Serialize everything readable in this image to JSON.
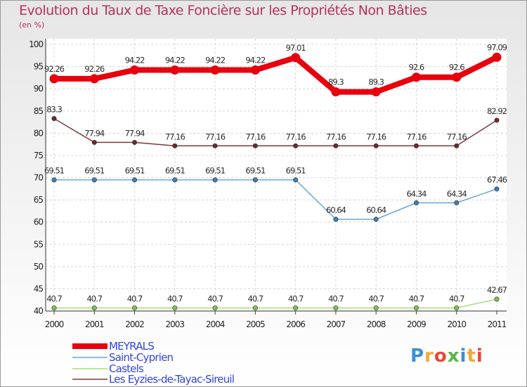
{
  "title": "Evolution du Taux de Taxe Foncière sur les Propriétés Non Bâties",
  "subtitle": "(en %)",
  "brand": {
    "letters": [
      "P",
      "r",
      "o",
      "x",
      "i",
      "t",
      "i"
    ],
    "colors": [
      "#3a8fd6",
      "#f4a83a",
      "#e8473a",
      "#55b848",
      "#3a8fd6",
      "#f4a83a",
      "#e8473a"
    ]
  },
  "chart_data": {
    "type": "line",
    "title": "Evolution du Taux de Taxe Foncière sur les Propriétés Non Bâties",
    "ylabel": "(en %)",
    "categories": [
      "2000",
      "2001",
      "2002",
      "2003",
      "2004",
      "2005",
      "2006",
      "2007",
      "2008",
      "2009",
      "2010",
      "2011"
    ],
    "ylim": [
      40,
      100
    ],
    "yticks": [
      "40",
      "45",
      "50",
      "55",
      "60",
      "65",
      "70",
      "75",
      "80",
      "85",
      "90",
      "95",
      "100"
    ],
    "grid": true,
    "legend": "bottom-left",
    "series": [
      {
        "name": "MEYRALS",
        "color": "#e8000d",
        "values": [
          92.26,
          92.26,
          94.22,
          94.22,
          94.22,
          94.22,
          97.01,
          89.3,
          89.3,
          92.6,
          92.6,
          97.09
        ],
        "labels": [
          "92.26",
          "92.26",
          "94.22",
          "94.22",
          "94.22",
          "94.22",
          "97.01",
          "89.3",
          "89.3",
          "92.6",
          "92.6",
          "97.09"
        ],
        "style": "thick"
      },
      {
        "name": "Saint-Cyprien",
        "color": "#6aa6d6",
        "marker": "#3d7fb8",
        "values": [
          69.51,
          69.51,
          69.51,
          69.51,
          69.51,
          69.51,
          69.51,
          60.64,
          60.64,
          64.34,
          64.34,
          67.46
        ],
        "labels": [
          "69.51",
          "69.51",
          "69.51",
          "69.51",
          "69.51",
          "69.51",
          "69.51",
          "60.64",
          "60.64",
          "64.34",
          "64.34",
          "67.46"
        ]
      },
      {
        "name": "Castels",
        "color": "#a8dc7a",
        "marker": "#7cc24e",
        "values": [
          40.7,
          40.7,
          40.7,
          40.7,
          40.7,
          40.7,
          40.7,
          40.7,
          40.7,
          40.7,
          40.7,
          42.67
        ],
        "labels": [
          "40.7",
          "40.7",
          "40.7",
          "40.7",
          "40.7",
          "40.7",
          "40.7",
          "40.7",
          "40.7",
          "40.7",
          "40.7",
          "42.67"
        ]
      },
      {
        "name": "Les Eyzies-de-Tayac-Sireuil",
        "color": "#7a3a3a",
        "marker": "#6b2a2a",
        "values": [
          83.3,
          77.94,
          77.94,
          77.16,
          77.16,
          77.16,
          77.16,
          77.16,
          77.16,
          77.16,
          77.16,
          82.92
        ],
        "labels": [
          "83.3",
          "77.94",
          "77.94",
          "77.16",
          "77.16",
          "77.16",
          "77.16",
          "77.16",
          "77.16",
          "77.16",
          "77.16",
          "82.92"
        ]
      }
    ],
    "legend_entries": [
      "MEYRALS",
      "Saint-Cyprien",
      "Castels",
      "Les Eyzies-de-Tayac-Sireuil"
    ]
  }
}
